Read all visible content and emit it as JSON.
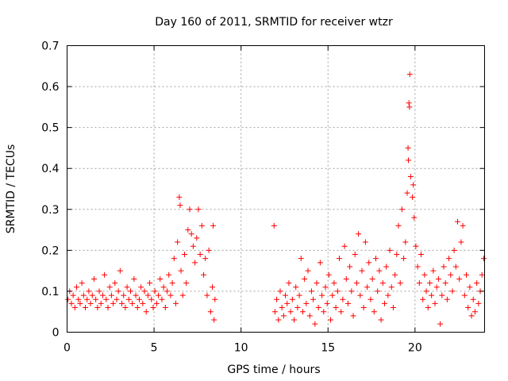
{
  "chart_data": {
    "type": "scatter",
    "title": "Day 160 of 2011, SRMTID for receiver wtzr",
    "xlabel": "GPS time / hours",
    "ylabel": "SRMTID / TECUs",
    "xlim": [
      0,
      24
    ],
    "ylim": [
      0,
      0.7
    ],
    "xticks": [
      0,
      5,
      10,
      15,
      20
    ],
    "yticks": [
      0,
      0.1,
      0.2,
      0.3,
      0.4,
      0.5,
      0.6,
      0.7
    ],
    "grid": true,
    "legend": "none",
    "marker": "+",
    "color": "#ff0000",
    "series": [
      {
        "name": "SRMTID",
        "points": [
          [
            0.05,
            0.08
          ],
          [
            0.15,
            0.1
          ],
          [
            0.25,
            0.07
          ],
          [
            0.35,
            0.09
          ],
          [
            0.45,
            0.06
          ],
          [
            0.55,
            0.11
          ],
          [
            0.65,
            0.08
          ],
          [
            0.75,
            0.07
          ],
          [
            0.85,
            0.12
          ],
          [
            0.95,
            0.09
          ],
          [
            1.05,
            0.06
          ],
          [
            1.15,
            0.08
          ],
          [
            1.25,
            0.1
          ],
          [
            1.35,
            0.07
          ],
          [
            1.45,
            0.09
          ],
          [
            1.55,
            0.13
          ],
          [
            1.65,
            0.08
          ],
          [
            1.75,
            0.06
          ],
          [
            1.85,
            0.1
          ],
          [
            1.95,
            0.07
          ],
          [
            2.05,
            0.09
          ],
          [
            2.15,
            0.14
          ],
          [
            2.25,
            0.08
          ],
          [
            2.35,
            0.06
          ],
          [
            2.45,
            0.11
          ],
          [
            2.55,
            0.09
          ],
          [
            2.65,
            0.07
          ],
          [
            2.75,
            0.12
          ],
          [
            2.85,
            0.08
          ],
          [
            2.95,
            0.1
          ],
          [
            3.05,
            0.15
          ],
          [
            3.15,
            0.07
          ],
          [
            3.25,
            0.09
          ],
          [
            3.35,
            0.06
          ],
          [
            3.45,
            0.11
          ],
          [
            3.55,
            0.08
          ],
          [
            3.65,
            0.1
          ],
          [
            3.75,
            0.07
          ],
          [
            3.85,
            0.13
          ],
          [
            3.95,
            0.09
          ],
          [
            4.05,
            0.06
          ],
          [
            4.15,
            0.08
          ],
          [
            4.25,
            0.11
          ],
          [
            4.35,
            0.07
          ],
          [
            4.45,
            0.1
          ],
          [
            4.55,
            0.05
          ],
          [
            4.65,
            0.09
          ],
          [
            4.75,
            0.12
          ],
          [
            4.85,
            0.08
          ],
          [
            4.95,
            0.06
          ],
          [
            5.05,
            0.1
          ],
          [
            5.15,
            0.07
          ],
          [
            5.25,
            0.09
          ],
          [
            5.35,
            0.13
          ],
          [
            5.45,
            0.08
          ],
          [
            5.55,
            0.11
          ],
          [
            5.65,
            0.06
          ],
          [
            5.75,
            0.1
          ],
          [
            5.85,
            0.14
          ],
          [
            5.95,
            0.09
          ],
          [
            6.05,
            0.12
          ],
          [
            6.15,
            0.18
          ],
          [
            6.25,
            0.07
          ],
          [
            6.35,
            0.22
          ],
          [
            6.45,
            0.33
          ],
          [
            6.5,
            0.31
          ],
          [
            6.55,
            0.15
          ],
          [
            6.65,
            0.09
          ],
          [
            6.75,
            0.19
          ],
          [
            6.85,
            0.12
          ],
          [
            6.95,
            0.25
          ],
          [
            7.05,
            0.3
          ],
          [
            7.15,
            0.24
          ],
          [
            7.25,
            0.21
          ],
          [
            7.35,
            0.17
          ],
          [
            7.45,
            0.23
          ],
          [
            7.55,
            0.3
          ],
          [
            7.65,
            0.19
          ],
          [
            7.75,
            0.26
          ],
          [
            7.85,
            0.14
          ],
          [
            7.95,
            0.18
          ],
          [
            8.05,
            0.09
          ],
          [
            8.15,
            0.2
          ],
          [
            8.25,
            0.05
          ],
          [
            8.35,
            0.11
          ],
          [
            8.4,
            0.26
          ],
          [
            8.45,
            0.03
          ],
          [
            8.5,
            0.08
          ],
          [
            11.9,
            0.26
          ],
          [
            11.95,
            0.05
          ],
          [
            12.05,
            0.08
          ],
          [
            12.15,
            0.03
          ],
          [
            12.25,
            0.1
          ],
          [
            12.35,
            0.06
          ],
          [
            12.45,
            0.04
          ],
          [
            12.55,
            0.09
          ],
          [
            12.65,
            0.07
          ],
          [
            12.75,
            0.12
          ],
          [
            12.85,
            0.05
          ],
          [
            12.95,
            0.08
          ],
          [
            13.05,
            0.03
          ],
          [
            13.15,
            0.11
          ],
          [
            13.25,
            0.06
          ],
          [
            13.35,
            0.09
          ],
          [
            13.45,
            0.18
          ],
          [
            13.55,
            0.05
          ],
          [
            13.65,
            0.13
          ],
          [
            13.75,
            0.07
          ],
          [
            13.85,
            0.15
          ],
          [
            13.95,
            0.04
          ],
          [
            14.05,
            0.1
          ],
          [
            14.15,
            0.08
          ],
          [
            14.25,
            0.02
          ],
          [
            14.35,
            0.12
          ],
          [
            14.45,
            0.06
          ],
          [
            14.55,
            0.17
          ],
          [
            14.65,
            0.09
          ],
          [
            14.75,
            0.05
          ],
          [
            14.85,
            0.11
          ],
          [
            14.95,
            0.07
          ],
          [
            15.05,
            0.14
          ],
          [
            15.15,
            0.03
          ],
          [
            15.25,
            0.09
          ],
          [
            15.35,
            0.12
          ],
          [
            15.45,
            0.06
          ],
          [
            15.55,
            0.1
          ],
          [
            15.65,
            0.18
          ],
          [
            15.75,
            0.05
          ],
          [
            15.85,
            0.08
          ],
          [
            15.95,
            0.21
          ],
          [
            16.05,
            0.13
          ],
          [
            16.15,
            0.07
          ],
          [
            16.25,
            0.16
          ],
          [
            16.35,
            0.1
          ],
          [
            16.45,
            0.04
          ],
          [
            16.55,
            0.19
          ],
          [
            16.65,
            0.12
          ],
          [
            16.75,
            0.24
          ],
          [
            16.85,
            0.09
          ],
          [
            16.95,
            0.15
          ],
          [
            17.05,
            0.06
          ],
          [
            17.15,
            0.22
          ],
          [
            17.25,
            0.11
          ],
          [
            17.35,
            0.17
          ],
          [
            17.45,
            0.08
          ],
          [
            17.55,
            0.13
          ],
          [
            17.65,
            0.05
          ],
          [
            17.75,
            0.18
          ],
          [
            17.85,
            0.1
          ],
          [
            17.95,
            0.15
          ],
          [
            18.05,
            0.03
          ],
          [
            18.15,
            0.12
          ],
          [
            18.25,
            0.07
          ],
          [
            18.35,
            0.16
          ],
          [
            18.45,
            0.09
          ],
          [
            18.55,
            0.2
          ],
          [
            18.65,
            0.11
          ],
          [
            18.75,
            0.06
          ],
          [
            18.85,
            0.14
          ],
          [
            18.95,
            0.19
          ],
          [
            19.05,
            0.26
          ],
          [
            19.15,
            0.12
          ],
          [
            19.25,
            0.3
          ],
          [
            19.35,
            0.18
          ],
          [
            19.45,
            0.22
          ],
          [
            19.55,
            0.34
          ],
          [
            19.6,
            0.45
          ],
          [
            19.62,
            0.42
          ],
          [
            19.65,
            0.56
          ],
          [
            19.68,
            0.55
          ],
          [
            19.7,
            0.63
          ],
          [
            19.75,
            0.38
          ],
          [
            19.85,
            0.33
          ],
          [
            19.9,
            0.36
          ],
          [
            19.95,
            0.28
          ],
          [
            20.05,
            0.21
          ],
          [
            20.15,
            0.16
          ],
          [
            20.25,
            0.12
          ],
          [
            20.35,
            0.19
          ],
          [
            20.45,
            0.08
          ],
          [
            20.55,
            0.14
          ],
          [
            20.65,
            0.1
          ],
          [
            20.75,
            0.06
          ],
          [
            20.85,
            0.12
          ],
          [
            20.95,
            0.09
          ],
          [
            21.05,
            0.15
          ],
          [
            21.15,
            0.07
          ],
          [
            21.25,
            0.11
          ],
          [
            21.35,
            0.13
          ],
          [
            21.45,
            0.02
          ],
          [
            21.55,
            0.09
          ],
          [
            21.65,
            0.16
          ],
          [
            21.75,
            0.12
          ],
          [
            21.85,
            0.08
          ],
          [
            21.95,
            0.18
          ],
          [
            22.05,
            0.14
          ],
          [
            22.15,
            0.1
          ],
          [
            22.25,
            0.2
          ],
          [
            22.35,
            0.16
          ],
          [
            22.45,
            0.27
          ],
          [
            22.55,
            0.13
          ],
          [
            22.65,
            0.22
          ],
          [
            22.75,
            0.26
          ],
          [
            22.85,
            0.09
          ],
          [
            22.95,
            0.14
          ],
          [
            23.05,
            0.06
          ],
          [
            23.15,
            0.11
          ],
          [
            23.25,
            0.04
          ],
          [
            23.35,
            0.08
          ],
          [
            23.45,
            0.05
          ],
          [
            23.55,
            0.12
          ],
          [
            23.65,
            0.07
          ],
          [
            23.75,
            0.1
          ],
          [
            23.85,
            0.14
          ],
          [
            23.95,
            0.18
          ]
        ]
      }
    ]
  }
}
